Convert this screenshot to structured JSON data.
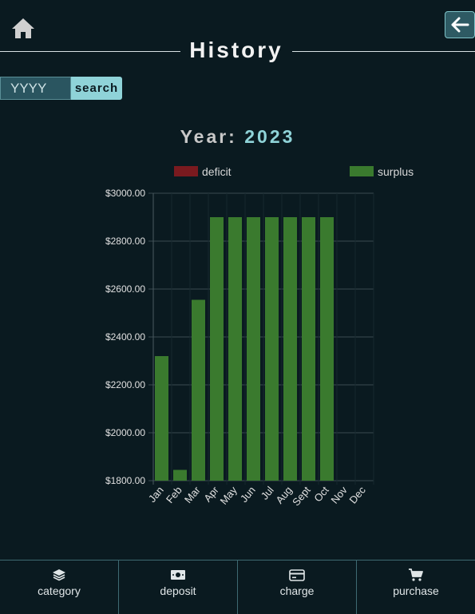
{
  "header": {
    "title": "History",
    "home_icon": "home-icon",
    "back_icon": "arrow-left-icon"
  },
  "search": {
    "placeholder": "YYYY",
    "button_label": "search"
  },
  "year_heading": {
    "label": "Year:",
    "value": "2023"
  },
  "colors": {
    "deficit": "#7a1a1f",
    "surplus": "#3a7a2e",
    "accent": "#8fd3d8",
    "background": "#0a1a20"
  },
  "chart_data": {
    "type": "bar",
    "categories": [
      "Jan",
      "Feb",
      "Mar",
      "Apr",
      "May",
      "Jun",
      "Jul",
      "Aug",
      "Sept",
      "Oct",
      "Nov",
      "Dec"
    ],
    "series": [
      {
        "name": "deficit",
        "values": [
          0,
          0,
          0,
          0,
          0,
          0,
          0,
          0,
          0,
          0,
          0,
          0
        ]
      },
      {
        "name": "surplus",
        "values": [
          2320,
          1845,
          2555,
          2900,
          2900,
          2900,
          2900,
          2900,
          2900,
          2900,
          null,
          null
        ]
      }
    ],
    "ylim": [
      1800,
      3000
    ],
    "yticks": [
      "$1800.00",
      "$2000.00",
      "$2200.00",
      "$2400.00",
      "$2600.00",
      "$2800.00",
      "$3000.00"
    ],
    "ytick_values": [
      1800,
      2000,
      2200,
      2400,
      2600,
      2800,
      3000
    ],
    "legend": [
      "deficit",
      "surplus"
    ],
    "legend_position": "top",
    "grid": true
  },
  "nav": [
    {
      "label": "category",
      "icon": "layers-icon"
    },
    {
      "label": "deposit",
      "icon": "cash-icon"
    },
    {
      "label": "charge",
      "icon": "credit-card-icon"
    },
    {
      "label": "purchase",
      "icon": "cart-icon"
    }
  ]
}
